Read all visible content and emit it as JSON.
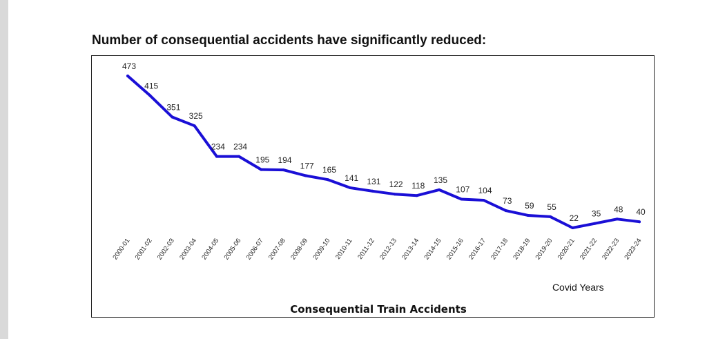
{
  "page_title": "Number of consequential accidents have significantly reduced:",
  "chart_data": {
    "type": "line",
    "title": "Number of consequential accidents have significantly reduced:",
    "xlabel": "Consequential Train Accidents",
    "ylabel": "",
    "categories": [
      "2000-01",
      "2001-02",
      "2002-03",
      "2003-04",
      "2004-05",
      "2005-06",
      "2006-07",
      "2007-08",
      "2008-09",
      "2009-10",
      "2010-11",
      "2011-12",
      "2012-13",
      "2013-14",
      "2014-15",
      "2015-16",
      "2016-17",
      "2017-18",
      "2018-19",
      "2019-20",
      "2020-21",
      "2021-22",
      "2022-23",
      "2023-24"
    ],
    "series": [
      {
        "name": "Consequential Train Accidents",
        "values": [
          473,
          415,
          351,
          325,
          234,
          234,
          195,
          194,
          177,
          165,
          141,
          131,
          122,
          118,
          135,
          107,
          104,
          73,
          59,
          55,
          22,
          35,
          48,
          40
        ]
      }
    ],
    "ylim": [
      0,
      500
    ],
    "grid": false,
    "line_color": "#1a0fd6",
    "annotations": [
      {
        "text": "Covid Years",
        "category": "2020-21"
      }
    ]
  }
}
